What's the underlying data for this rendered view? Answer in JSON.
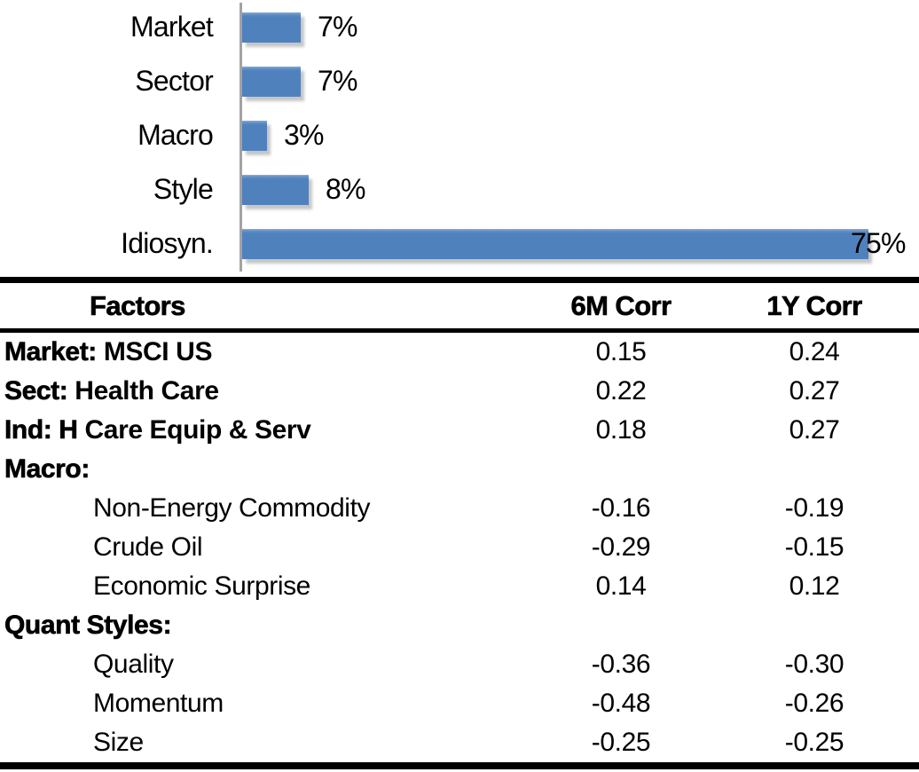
{
  "chart_data": {
    "type": "bar",
    "orientation": "horizontal",
    "title": "",
    "categories": [
      "Market",
      "Sector",
      "Macro",
      "Style",
      "Idiosyn."
    ],
    "values": [
      7,
      7,
      3,
      8,
      75
    ],
    "value_labels": [
      "7%",
      "7%",
      "3%",
      "8%",
      "75%"
    ],
    "unit": "%",
    "xlim": [
      0,
      80
    ],
    "grid": false,
    "legend": "none",
    "bar_color": "#4f81bd",
    "axis_color": "#a3a3a3",
    "label_color": "#000000"
  },
  "table": {
    "headers": {
      "factors": "Factors",
      "corr6m": "6M Corr",
      "corr1y": "1Y Corr"
    },
    "rows": [
      {
        "prefix": "Market:",
        "name": " MSCI US",
        "indent": false,
        "corr6m": "0.15",
        "corr1y": "0.24"
      },
      {
        "prefix": "Sect:",
        "name": " Health Care",
        "indent": false,
        "corr6m": "0.22",
        "corr1y": "0.27"
      },
      {
        "prefix": "Ind: H",
        "name": " Care Equip & Serv",
        "indent": false,
        "corr6m": "0.18",
        "corr1y": "0.27"
      },
      {
        "prefix": "Macro:",
        "name": "",
        "indent": false,
        "corr6m": "",
        "corr1y": ""
      },
      {
        "prefix": "",
        "name": "Non-Energy Commodity",
        "indent": true,
        "corr6m": "-0.16",
        "corr1y": "-0.19"
      },
      {
        "prefix": "",
        "name": "Crude Oil",
        "indent": true,
        "corr6m": "-0.29",
        "corr1y": "-0.15"
      },
      {
        "prefix": "",
        "name": "Economic Surprise",
        "indent": true,
        "corr6m": "0.14",
        "corr1y": "0.12"
      },
      {
        "prefix": "Quant Styles:",
        "name": "",
        "indent": false,
        "corr6m": "",
        "corr1y": ""
      },
      {
        "prefix": "",
        "name": "Quality",
        "indent": true,
        "corr6m": "-0.36",
        "corr1y": "-0.30"
      },
      {
        "prefix": "",
        "name": "Momentum",
        "indent": true,
        "corr6m": "-0.48",
        "corr1y": "-0.26"
      },
      {
        "prefix": "",
        "name": "Size",
        "indent": true,
        "corr6m": "-0.25",
        "corr1y": "-0.25"
      }
    ]
  }
}
